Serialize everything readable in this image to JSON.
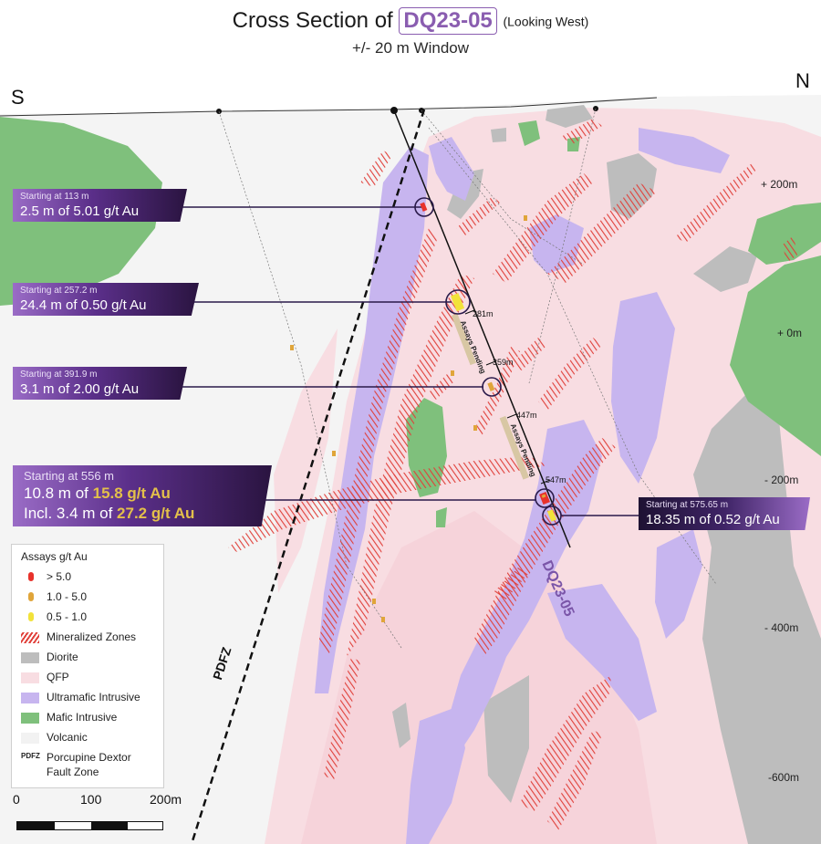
{
  "title": {
    "prefix": "Cross Section of",
    "hole_id": "DQ23-05",
    "orientation": "(Looking West)",
    "subtitle": "+/- 20 m Window"
  },
  "compass": {
    "left": "S",
    "right": "N"
  },
  "elevations": [
    "+ 200m",
    "+ 0m",
    "- 200m",
    "- 400m",
    "-600m"
  ],
  "drillhole": {
    "label": "DQ23-05",
    "depths": [
      "281m",
      "359m",
      "447m",
      "547m"
    ],
    "pending": [
      "Assays Pending",
      "Assays Pending"
    ]
  },
  "intercepts": [
    {
      "start": "Starting at 113 m",
      "result": "2.5 m of 5.01 g/t Au"
    },
    {
      "start": "Starting at 257.2 m",
      "result": "24.4 m of 0.50 g/t Au"
    },
    {
      "start": "Starting at 391.9 m",
      "result": "3.1 m of 2.00 g/t Au"
    },
    {
      "start": "Starting at 556 m",
      "result_prefix": "10.8 m of ",
      "result_grade": "15.8 g/t Au",
      "incl_prefix": "Incl. 3.4 m of ",
      "incl_grade": "27.2 g/t Au"
    },
    {
      "start": "Starting at 575.65 m",
      "result": "18.35 m of 0.52 g/t Au"
    }
  ],
  "fault_label": "PDFZ",
  "legend": {
    "title": "Assays g/t Au",
    "items": [
      {
        "label": "> 5.0",
        "color": "#e8322b",
        "kind": "dot"
      },
      {
        "label": "1.0 - 5.0",
        "color": "#e0a53a",
        "kind": "dot"
      },
      {
        "label": "0.5 - 1.0",
        "color": "#f2e23a",
        "kind": "dot"
      },
      {
        "label": "Mineralized Zones",
        "color": "#e0403a",
        "kind": "hatch"
      },
      {
        "label": "Diorite",
        "color": "#bdbdbd",
        "kind": "fill"
      },
      {
        "label": "QFP",
        "color": "#f8dde2",
        "kind": "fill"
      },
      {
        "label": "Ultramafic Intrusive",
        "color": "#c7b5ef",
        "kind": "fill"
      },
      {
        "label": "Mafic Intrusive",
        "color": "#7fc07c",
        "kind": "fill"
      },
      {
        "label": "Volcanic",
        "color": "#f2f2f2",
        "kind": "fill"
      }
    ],
    "pdfz_key": "PDFZ",
    "pdfz_line1": "Porcupine Dextor",
    "pdfz_line2": "Fault Zone"
  },
  "scale": {
    "labels": [
      "0",
      "100",
      "200m"
    ]
  },
  "colors": {
    "diorite": "#bdbdbd",
    "qfp": "#f8dde2",
    "ultramafic": "#c7b5ef",
    "mafic": "#7fc07c",
    "volcanic": "#f4f4f4",
    "mineralized": "#e0403a",
    "callout_purple": "#5b2f8a",
    "grade_gold": "#e3c04a"
  }
}
